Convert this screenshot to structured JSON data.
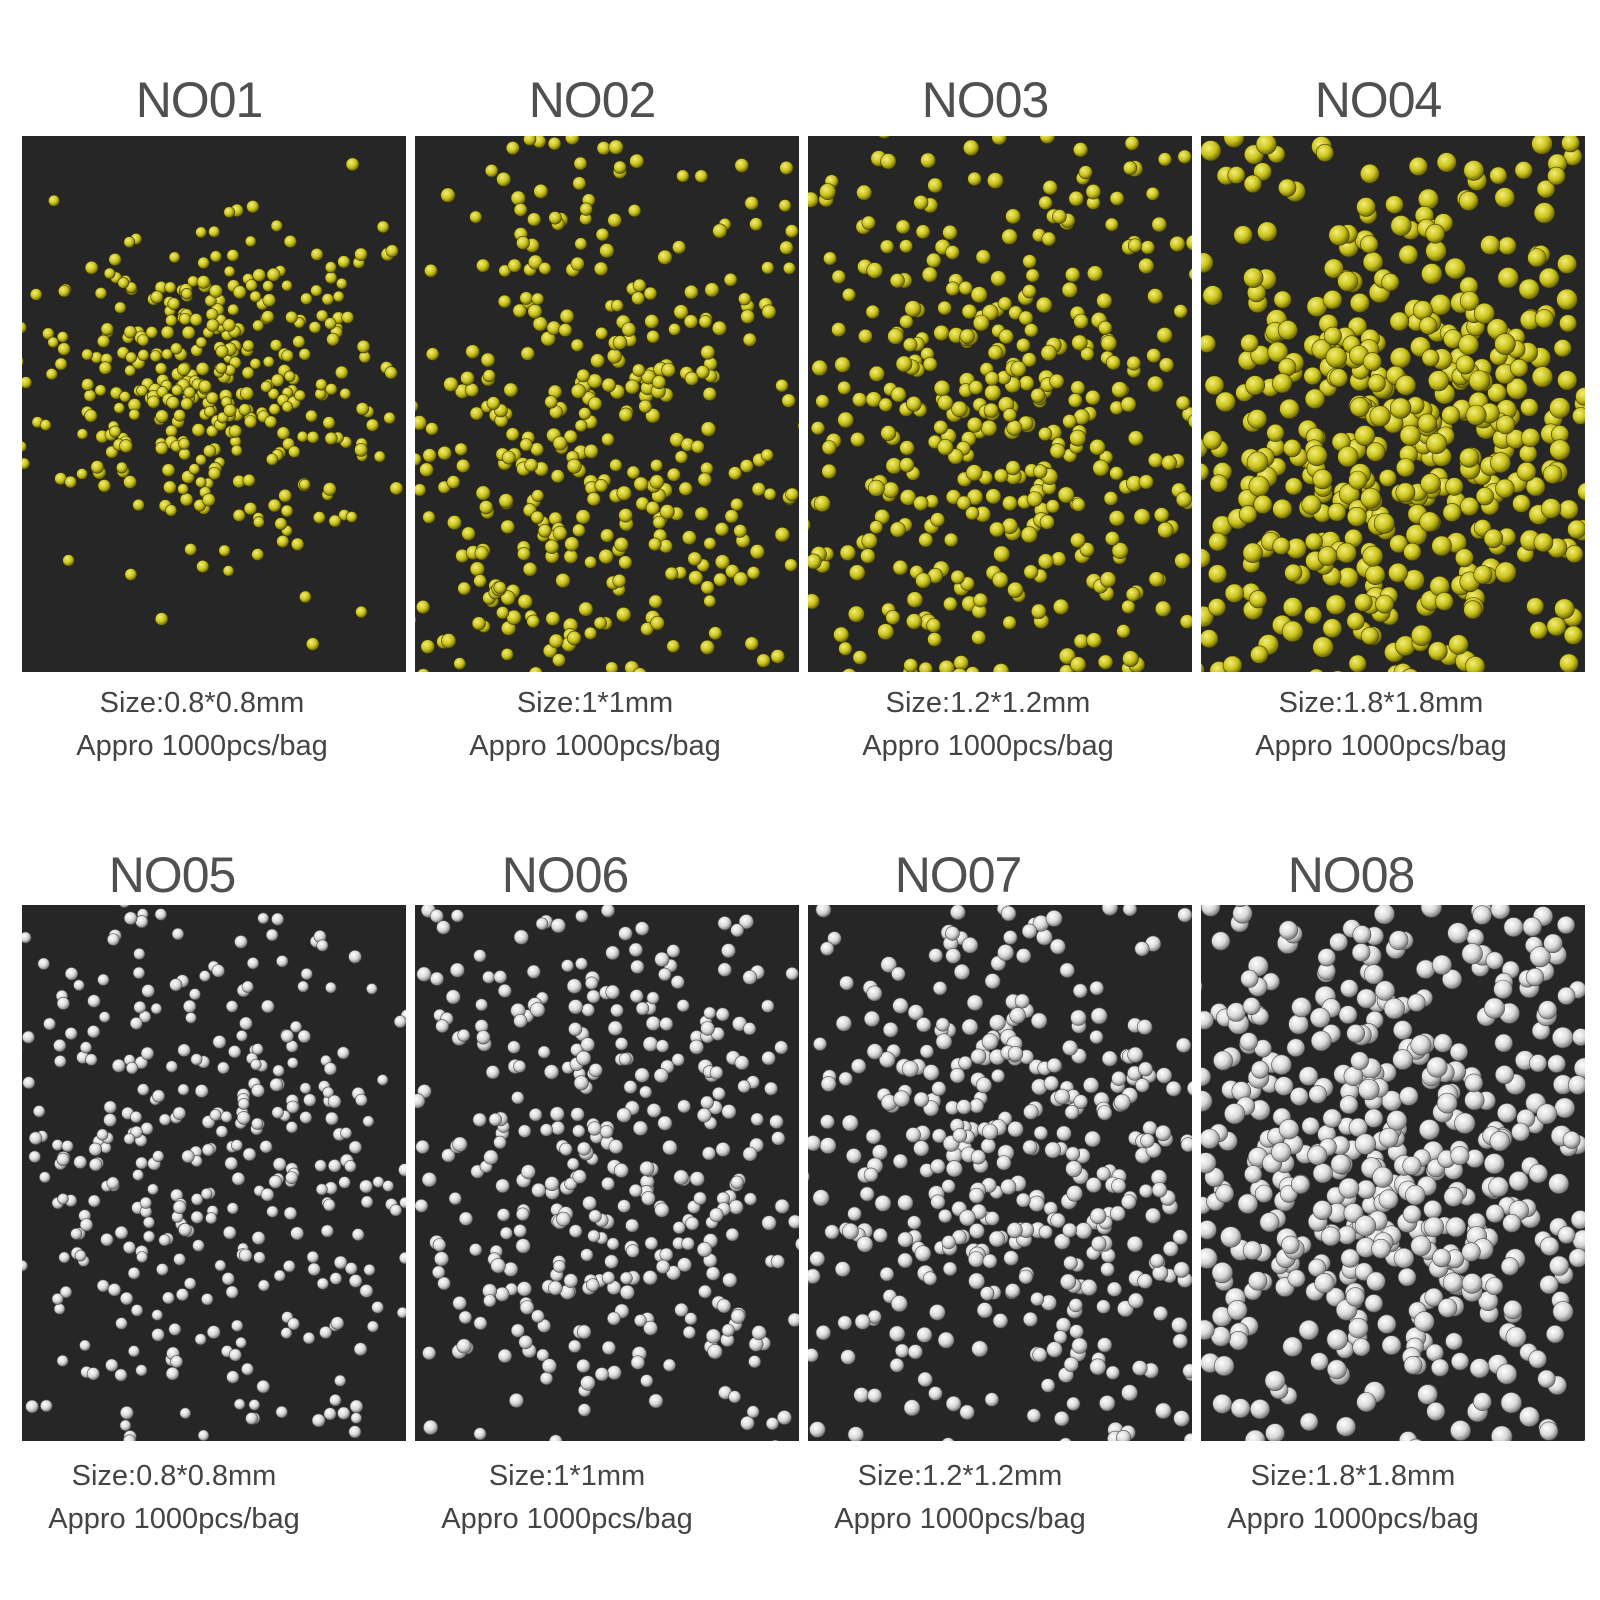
{
  "items": [
    {
      "id": "NO01",
      "size": "Size:0.8*0.8mm",
      "qty": "Appro 1000pcs/bag",
      "color": "gold",
      "d": 0.8
    },
    {
      "id": "NO02",
      "size": "Size:1*1mm",
      "qty": "Appro 1000pcs/bag",
      "color": "gold",
      "d": 1.0
    },
    {
      "id": "NO03",
      "size": "Size:1.2*1.2mm",
      "qty": "Appro 1000pcs/bag",
      "color": "gold",
      "d": 1.2
    },
    {
      "id": "NO04",
      "size": "Size:1.8*1.8mm",
      "qty": "Appro 1000pcs/bag",
      "color": "gold",
      "d": 1.8
    },
    {
      "id": "NO05",
      "size": "Size:0.8*0.8mm",
      "qty": "Appro 1000pcs/bag",
      "color": "clear",
      "d": 0.8
    },
    {
      "id": "NO06",
      "size": "Size:1*1mm",
      "qty": "Appro 1000pcs/bag",
      "color": "clear",
      "d": 1.0
    },
    {
      "id": "NO07",
      "size": "Size:1.2*1.2mm",
      "qty": "Appro 1000pcs/bag",
      "color": "clear",
      "d": 1.2
    },
    {
      "id": "NO08",
      "size": "Size:1.8*1.8mm",
      "qty": "Appro 1000pcs/bag",
      "color": "clear",
      "d": 1.8
    }
  ],
  "colors": {
    "background": "#262626",
    "gold": "#c9c21a",
    "gold_highlight": "#f3ee7a",
    "clear": "#d8d8d8",
    "clear_highlight": "#ffffff"
  }
}
